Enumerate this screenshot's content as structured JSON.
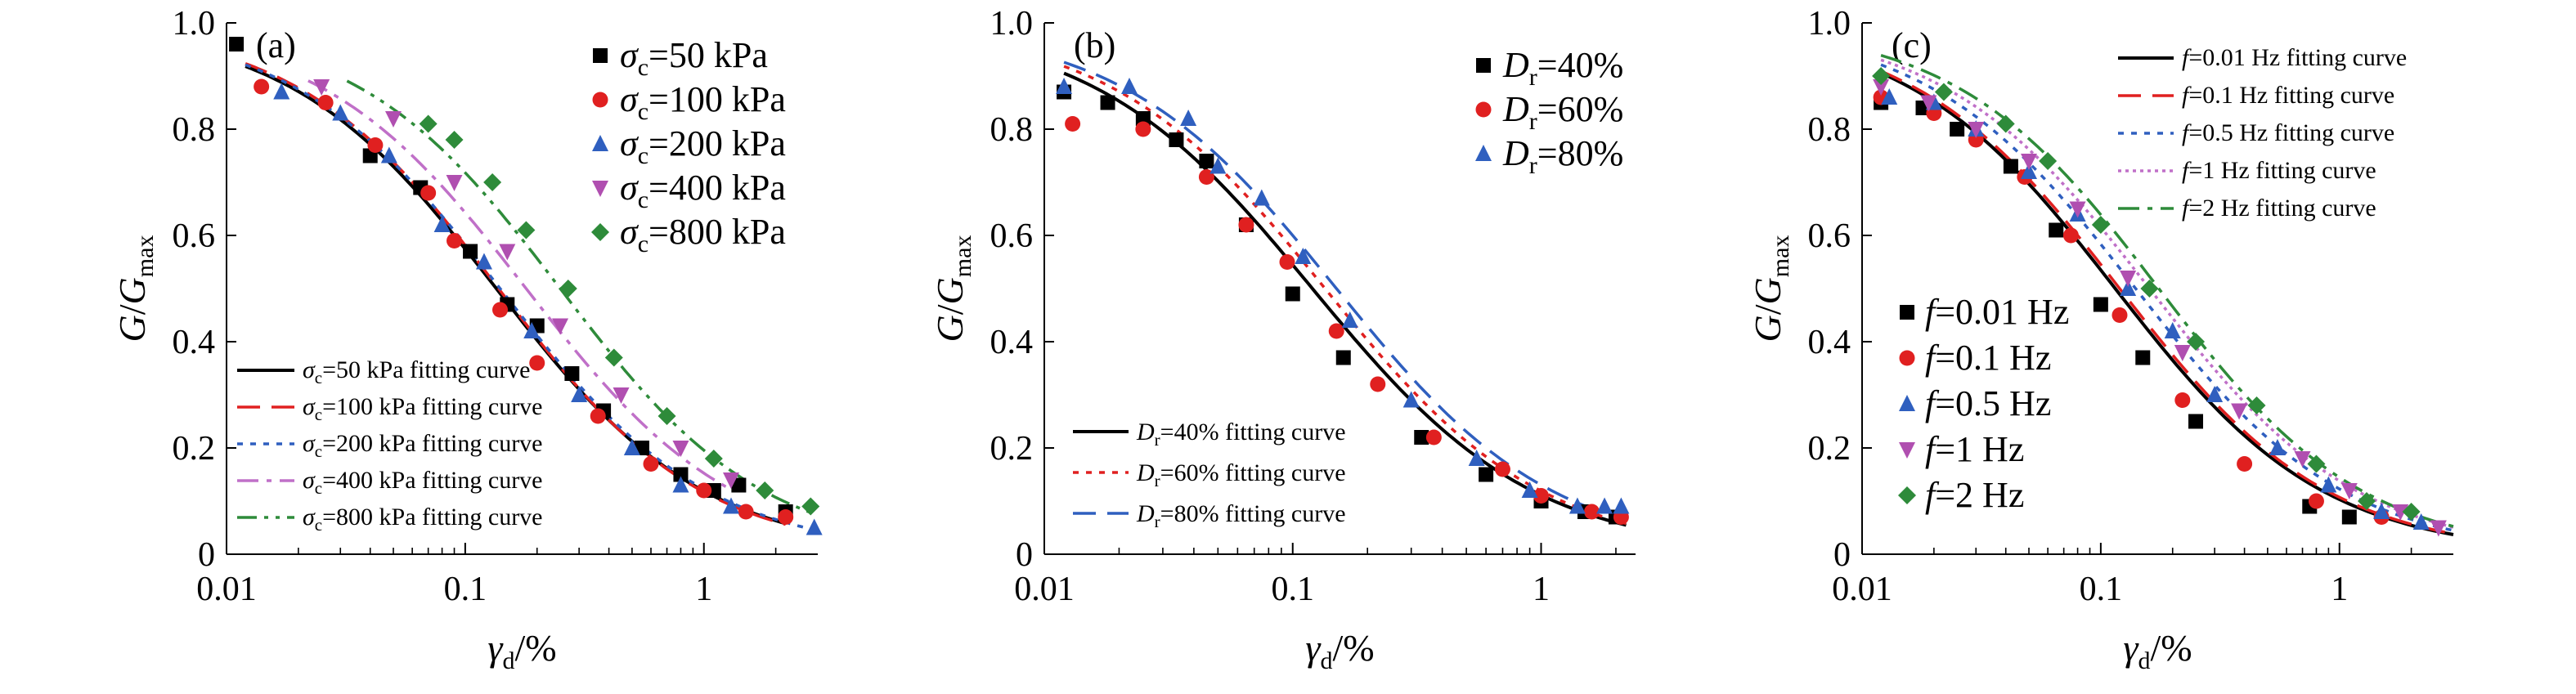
{
  "figure": {
    "y_ticks": [
      "0",
      "0.2",
      "0.4",
      "0.6",
      "0.8",
      "1.0"
    ],
    "x_ticks": [
      "0.01",
      "0.1",
      "1"
    ],
    "ylabel": {
      "main": "G",
      "slash": "/",
      "g": "G",
      "sub": "max"
    },
    "xlabel": {
      "main": "γ",
      "sub": "d",
      "suffix": "/%"
    }
  },
  "chart_data": [
    {
      "type": "scatter",
      "tag": "(a)",
      "xscale": "log",
      "xlim": [
        0.01,
        3.0
      ],
      "ylim": [
        0,
        1.0
      ],
      "grid": false,
      "legend_markers_position": "top-right",
      "legend_curves_position": "bottom-left",
      "series": [
        {
          "name": "σc=50 kPa",
          "sym": "σ",
          "sub": "c",
          "rest": "=50 kPa",
          "marker": "square",
          "color": "#000000",
          "x": [
            0.011,
            0.04,
            0.065,
            0.105,
            0.15,
            0.2,
            0.28,
            0.38,
            0.55,
            0.8,
            1.1,
            1.4,
            2.2
          ],
          "y": [
            0.96,
            0.75,
            0.69,
            0.57,
            0.47,
            0.43,
            0.34,
            0.27,
            0.2,
            0.15,
            0.12,
            0.13,
            0.08
          ]
        },
        {
          "name": "σc=100 kPa",
          "sym": "σ",
          "sub": "c",
          "rest": "=100 kPa",
          "marker": "circle",
          "color": "#e02020",
          "x": [
            0.014,
            0.026,
            0.042,
            0.07,
            0.09,
            0.14,
            0.2,
            0.36,
            0.6,
            1.0,
            1.5,
            2.2
          ],
          "y": [
            0.88,
            0.85,
            0.77,
            0.68,
            0.59,
            0.46,
            0.36,
            0.26,
            0.17,
            0.12,
            0.08,
            0.07
          ]
        },
        {
          "name": "σc=200 kPa",
          "sym": "σ",
          "sub": "c",
          "rest": "=200 kPa",
          "marker": "triangle-up",
          "color": "#2f5fbf",
          "x": [
            0.017,
            0.03,
            0.048,
            0.08,
            0.12,
            0.19,
            0.3,
            0.5,
            0.8,
            1.3,
            2.9
          ],
          "y": [
            0.87,
            0.83,
            0.75,
            0.62,
            0.55,
            0.42,
            0.3,
            0.2,
            0.13,
            0.09,
            0.05
          ]
        },
        {
          "name": "σc=400 kPa",
          "sym": "σ",
          "sub": "c",
          "rest": "=400 kPa",
          "marker": "triangle-down",
          "color": "#b04fb0",
          "x": [
            0.025,
            0.05,
            0.09,
            0.15,
            0.25,
            0.45,
            0.8,
            1.3
          ],
          "y": [
            0.88,
            0.82,
            0.7,
            0.57,
            0.43,
            0.3,
            0.2,
            0.14
          ]
        },
        {
          "name": "σc=800 kPa",
          "sym": "σ",
          "sub": "c",
          "rest": "=800 kPa",
          "marker": "diamond",
          "color": "#2e8b3a",
          "x": [
            0.07,
            0.09,
            0.13,
            0.18,
            0.27,
            0.42,
            0.7,
            1.1,
            1.8,
            2.8
          ],
          "y": [
            0.81,
            0.78,
            0.7,
            0.61,
            0.5,
            0.37,
            0.26,
            0.18,
            0.12,
            0.09
          ]
        }
      ],
      "curves": [
        {
          "name": "σc=50 kPa fitting curve",
          "sym": "σ",
          "sub": "c",
          "rest": "=50 kPa fitting curve",
          "style": "solid",
          "color": "#000000",
          "gamma_r": 0.135,
          "n": 1.0,
          "x_range": [
            0.012,
            2.2
          ]
        },
        {
          "name": "σc=100 kPa fitting curve",
          "sym": "σ",
          "sub": "c",
          "rest": "=100 kPa fitting curve",
          "style": "dash",
          "color": "#e02020",
          "gamma_r": 0.138,
          "n": 1.02,
          "x_range": [
            0.012,
            2.2
          ]
        },
        {
          "name": "σc=200 kPa fitting curve",
          "sym": "σ",
          "sub": "c",
          "rest": "=200 kPa fitting curve",
          "style": "dot",
          "color": "#2f5fbf",
          "gamma_r": 0.14,
          "n": 1.0,
          "x_range": [
            0.012,
            3.0
          ]
        },
        {
          "name": "σc=400 kPa fitting curve",
          "sym": "σ",
          "sub": "c",
          "rest": "=400 kPa fitting curve",
          "style": "dashdot",
          "color": "#c070c8",
          "gamma_r": 0.18,
          "n": 1.0,
          "x_range": [
            0.022,
            1.3
          ]
        },
        {
          "name": "σc=800 kPa fitting curve",
          "sym": "σ",
          "sub": "c",
          "rest": "=800 kPa fitting curve",
          "style": "dashdotdot",
          "color": "#2e8b3a",
          "gamma_r": 0.25,
          "n": 1.02,
          "x_range": [
            0.032,
            2.8
          ]
        }
      ]
    },
    {
      "type": "scatter",
      "tag": "(b)",
      "xscale": "log",
      "xlim": [
        0.01,
        2.4
      ],
      "ylim": [
        0,
        1.0
      ],
      "grid": false,
      "legend_markers_position": "top-right",
      "legend_curves_position": "bottom-left",
      "series": [
        {
          "name": "Dr=40%",
          "sym": "D",
          "sub": "r",
          "rest": "=40%",
          "marker": "square",
          "color": "#000000",
          "x": [
            0.012,
            0.018,
            0.025,
            0.034,
            0.045,
            0.065,
            0.1,
            0.16,
            0.33,
            0.6,
            1.0,
            1.5,
            2.0
          ],
          "y": [
            0.87,
            0.85,
            0.82,
            0.78,
            0.74,
            0.62,
            0.49,
            0.37,
            0.22,
            0.15,
            0.1,
            0.08,
            0.07
          ]
        },
        {
          "name": "Dr=60%",
          "sym": "D",
          "sub": "r",
          "rest": "=60%",
          "marker": "circle",
          "color": "#e02020",
          "x": [
            0.013,
            0.025,
            0.045,
            0.065,
            0.095,
            0.15,
            0.22,
            0.37,
            0.7,
            1.0,
            1.6,
            2.1
          ],
          "y": [
            0.81,
            0.8,
            0.71,
            0.62,
            0.55,
            0.42,
            0.32,
            0.22,
            0.16,
            0.11,
            0.08,
            0.07
          ]
        },
        {
          "name": "Dr=80%",
          "sym": "D",
          "sub": "r",
          "rest": "=80%",
          "marker": "triangle-up",
          "color": "#2f5fbf",
          "x": [
            0.012,
            0.022,
            0.038,
            0.05,
            0.075,
            0.11,
            0.17,
            0.3,
            0.55,
            0.9,
            1.4,
            1.8,
            2.1
          ],
          "y": [
            0.88,
            0.88,
            0.82,
            0.73,
            0.67,
            0.56,
            0.44,
            0.29,
            0.18,
            0.12,
            0.09,
            0.09,
            0.09
          ]
        }
      ],
      "curves": [
        {
          "name": "Dr=40% fitting curve",
          "sym": "D",
          "sub": "r",
          "rest": "=40% fitting curve",
          "style": "solid",
          "color": "#000000",
          "gamma_r": 0.12,
          "n": 0.98,
          "x_range": [
            0.012,
            2.2
          ]
        },
        {
          "name": "Dr=60% fitting curve",
          "sym": "D",
          "sub": "r",
          "rest": "=60% fitting curve",
          "style": "dot",
          "color": "#e02020",
          "gamma_r": 0.135,
          "n": 1.0,
          "x_range": [
            0.012,
            2.2
          ]
        },
        {
          "name": "Dr=80% fitting curve",
          "sym": "D",
          "sub": "r",
          "rest": "=80% fitting curve",
          "style": "dash",
          "color": "#2f5fbf",
          "gamma_r": 0.15,
          "n": 1.0,
          "x_range": [
            0.012,
            2.2
          ]
        }
      ]
    },
    {
      "type": "scatter",
      "tag": "(c)",
      "xscale": "log",
      "xlim": [
        0.01,
        3.0
      ],
      "ylim": [
        0,
        1.0
      ],
      "grid": false,
      "legend_markers_position": "bottom-left",
      "legend_curves_position": "top-right",
      "series": [
        {
          "name": "f=0.01 Hz",
          "sym": "f",
          "sub": "",
          "rest": "=0.01 Hz",
          "marker": "square",
          "color": "#000000",
          "x": [
            0.012,
            0.018,
            0.025,
            0.042,
            0.065,
            0.1,
            0.15,
            0.25,
            0.75,
            1.1
          ],
          "y": [
            0.85,
            0.84,
            0.8,
            0.73,
            0.61,
            0.47,
            0.37,
            0.25,
            0.09,
            0.07
          ]
        },
        {
          "name": "f=0.1 Hz",
          "sym": "f",
          "sub": "",
          "rest": "=0.1 Hz",
          "marker": "circle",
          "color": "#e02020",
          "x": [
            0.012,
            0.02,
            0.03,
            0.048,
            0.075,
            0.12,
            0.22,
            0.4,
            0.8,
            1.5
          ],
          "y": [
            0.86,
            0.83,
            0.78,
            0.71,
            0.6,
            0.45,
            0.29,
            0.17,
            0.1,
            0.07
          ]
        },
        {
          "name": "f=0.5 Hz",
          "sym": "f",
          "sub": "",
          "rest": "=0.5 Hz",
          "marker": "triangle-up",
          "color": "#2f5fbf",
          "x": [
            0.013,
            0.02,
            0.03,
            0.05,
            0.08,
            0.13,
            0.2,
            0.3,
            0.55,
            0.9,
            1.5,
            2.2
          ],
          "y": [
            0.86,
            0.85,
            0.8,
            0.72,
            0.64,
            0.5,
            0.42,
            0.3,
            0.2,
            0.13,
            0.08,
            0.06
          ]
        },
        {
          "name": "f=1 Hz",
          "sym": "f",
          "sub": "",
          "rest": "=1 Hz",
          "marker": "triangle-down",
          "color": "#b04fb0",
          "x": [
            0.012,
            0.019,
            0.03,
            0.05,
            0.08,
            0.13,
            0.22,
            0.38,
            0.7,
            1.1,
            1.8,
            2.6
          ],
          "y": [
            0.88,
            0.85,
            0.8,
            0.74,
            0.65,
            0.52,
            0.38,
            0.27,
            0.18,
            0.12,
            0.08,
            0.05
          ]
        },
        {
          "name": "f=2 Hz",
          "sym": "f",
          "sub": "",
          "rest": "=2 Hz",
          "marker": "diamond",
          "color": "#2e8b3a",
          "x": [
            0.012,
            0.022,
            0.04,
            0.06,
            0.1,
            0.16,
            0.25,
            0.45,
            0.8,
            1.3,
            2.0
          ],
          "y": [
            0.9,
            0.87,
            0.81,
            0.74,
            0.62,
            0.5,
            0.4,
            0.28,
            0.17,
            0.1,
            0.08
          ]
        }
      ],
      "curves": [
        {
          "name": "f=0.01 Hz fitting curve",
          "sym": "f",
          "sub": "",
          "rest": "=0.01 Hz fitting curve",
          "style": "solid",
          "color": "#000000",
          "gamma_r": 0.115,
          "n": 1.0,
          "x_range": [
            0.012,
            3.0
          ]
        },
        {
          "name": "f=0.1 Hz fitting curve",
          "sym": "f",
          "sub": "",
          "rest": "=0.1 Hz fitting curve",
          "style": "dash",
          "color": "#e02020",
          "gamma_r": 0.12,
          "n": 1.0,
          "x_range": [
            0.012,
            3.0
          ]
        },
        {
          "name": "f=0.5 Hz fitting curve",
          "sym": "f",
          "sub": "",
          "rest": "=0.5 Hz fitting curve",
          "style": "dot",
          "color": "#2f5fbf",
          "gamma_r": 0.14,
          "n": 1.0,
          "x_range": [
            0.012,
            3.0
          ]
        },
        {
          "name": "f=1 Hz fitting curve",
          "sym": "f",
          "sub": "",
          "rest": "=1 Hz fitting curve",
          "style": "dotfine",
          "color": "#c070c8",
          "gamma_r": 0.16,
          "n": 1.0,
          "x_range": [
            0.012,
            3.0
          ]
        },
        {
          "name": "f=2 Hz fitting curve",
          "sym": "f",
          "sub": "",
          "rest": "=2 Hz fitting curve",
          "style": "dashdot",
          "color": "#2e8b3a",
          "gamma_r": 0.175,
          "n": 1.02,
          "x_range": [
            0.012,
            3.0
          ]
        }
      ]
    }
  ]
}
